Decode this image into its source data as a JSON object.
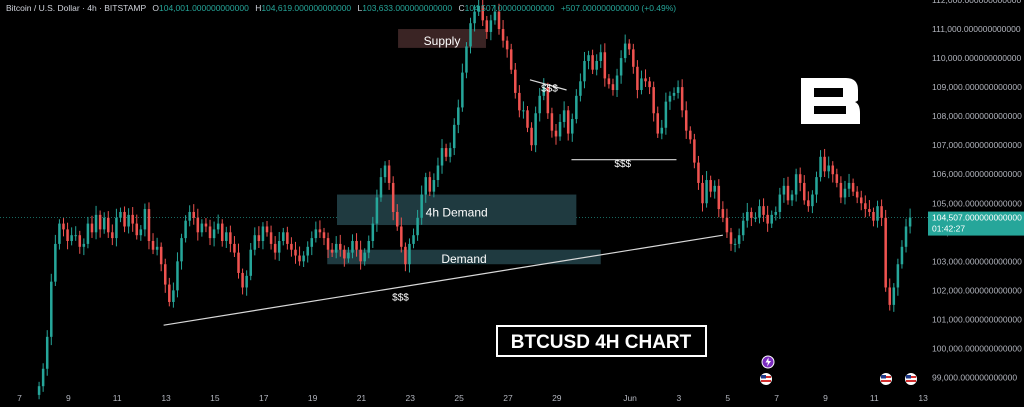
{
  "header": {
    "symbol": "Bitcoin / U.S. Dollar · 4h · BITSTAMP",
    "open_label": "O",
    "open": "104,001.000000000000",
    "high_label": "H",
    "high": "104,619.000000000000",
    "low_label": "L",
    "low": "103,633.000000000000",
    "close_label": "C",
    "close": "104,507.000000000000",
    "change": "+507.000000000000 (+0.49%)"
  },
  "colors": {
    "up": "#26a69a",
    "down": "#ef5350",
    "zone": "#1f3a40",
    "line": "#d9d9d9",
    "axis_text": "#b2b5be",
    "price_tag": "#26a69a"
  },
  "chart_data": {
    "type": "candlestick",
    "title": "BTCUSD 4H CHART",
    "ylim": [
      98500,
      112000
    ],
    "y_ticks": [
      "99,000.000000000000",
      "100,000.000000000000",
      "101,000.000000000000",
      "102,000.000000000000",
      "103,000.000000000000",
      "104,000.000000000000",
      "105,000.000000000000",
      "106,000.000000000000",
      "107,000.000000000000",
      "108,000.000000000000",
      "109,000.000000000000",
      "110,000.000000000000",
      "111,000.000000000000",
      "112,000.000000000000"
    ],
    "x_ticks": [
      {
        "label": "7",
        "day": 7
      },
      {
        "label": "9",
        "day": 9
      },
      {
        "label": "11",
        "day": 11
      },
      {
        "label": "13",
        "day": 13
      },
      {
        "label": "15",
        "day": 15
      },
      {
        "label": "17",
        "day": 17
      },
      {
        "label": "19",
        "day": 19
      },
      {
        "label": "21",
        "day": 21
      },
      {
        "label": "23",
        "day": 23
      },
      {
        "label": "25",
        "day": 25
      },
      {
        "label": "27",
        "day": 27
      },
      {
        "label": "29",
        "day": 29
      },
      {
        "label": "Jun",
        "day": 32
      },
      {
        "label": "3",
        "day": 34
      },
      {
        "label": "5",
        "day": 36
      },
      {
        "label": "7",
        "day": 38
      },
      {
        "label": "9",
        "day": 40
      },
      {
        "label": "11",
        "day": 42
      },
      {
        "label": "13",
        "day": 44
      }
    ],
    "x_range_days": [
      6.2,
      44.2
    ],
    "current_price": {
      "label": "104,507.000000000000",
      "value": 104507,
      "countdown": "01:42:27"
    },
    "closes": [
      98700,
      99300,
      100400,
      102300,
      103600,
      104300,
      104100,
      103700,
      103900,
      103900,
      103500,
      103600,
      104300,
      104000,
      104600,
      104100,
      104500,
      104000,
      103800,
      104500,
      104700,
      104200,
      104600,
      104300,
      103900,
      104100,
      104800,
      103700,
      103400,
      103500,
      102900,
      102200,
      101600,
      102000,
      103000,
      103800,
      104400,
      104700,
      104500,
      104000,
      104300,
      104200,
      103800,
      104100,
      104300,
      103700,
      104000,
      103600,
      103300,
      102600,
      102100,
      102500,
      103400,
      103900,
      103700,
      104200,
      104000,
      103600,
      103300,
      103700,
      104000,
      103600,
      103400,
      103200,
      103000,
      103200,
      103500,
      103800,
      104100,
      104000,
      103800,
      103400,
      103300,
      103600,
      103400,
      103100,
      103300,
      103700,
      103400,
      103000,
      103300,
      103700,
      104300,
      105200,
      105900,
      106300,
      105700,
      104700,
      104200,
      103500,
      102900,
      103600,
      103900,
      104500,
      105300,
      105900,
      105400,
      105800,
      106300,
      106900,
      106600,
      106900,
      107700,
      108300,
      109500,
      110400,
      111200,
      111600,
      111800,
      111300,
      110900,
      111300,
      111600,
      111000,
      110600,
      110300,
      109600,
      108800,
      108200,
      108200,
      107600,
      107000,
      108100,
      108700,
      109000,
      108100,
      107500,
      107300,
      107800,
      108200,
      107400,
      107900,
      108700,
      109200,
      109900,
      110100,
      109600,
      109900,
      110200,
      109300,
      109100,
      108900,
      109400,
      110000,
      110500,
      110300,
      109700,
      108900,
      109300,
      109200,
      109000,
      108100,
      107400,
      107600,
      108500,
      108700,
      108800,
      109000,
      108200,
      107500,
      107200,
      106400,
      105700,
      105000,
      105800,
      105400,
      105600,
      104800,
      104500,
      104000,
      103600,
      103600,
      103900,
      104400,
      104700,
      104500,
      104500,
      104900,
      104600,
      104300,
      104600,
      104700,
      105300,
      105600,
      105100,
      105300,
      106000,
      105700,
      105100,
      104900,
      105300,
      105900,
      106600,
      106100,
      106300,
      106000,
      105700,
      105200,
      105500,
      105700,
      105400,
      105200,
      105000,
      104800,
      104700,
      104400,
      104900,
      104500,
      102100,
      101500,
      102100,
      102900,
      103500,
      104200,
      104507
    ],
    "annotations": [
      {
        "text": "Supply"
      },
      {
        "text": "4h Demand"
      },
      {
        "text": "Demand"
      },
      {
        "text": "$$$"
      },
      {
        "text": "$$$"
      },
      {
        "text": "$$$"
      }
    ]
  },
  "logo": {
    "name": "b-logo"
  }
}
